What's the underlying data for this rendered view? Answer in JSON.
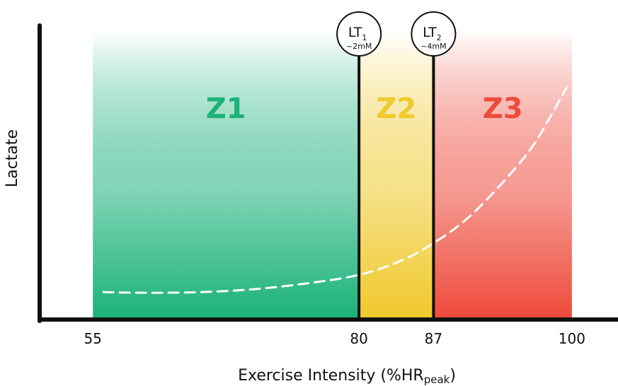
{
  "chart_data": {
    "type": "area",
    "xlabel_main": "Exercise Intensity (%HR",
    "xlabel_sub": "peak",
    "xlabel_close": ")",
    "ylabel": "Lactate",
    "x_ticks": [
      55,
      80,
      87,
      100
    ],
    "xlim": [
      50,
      103
    ],
    "grid": false,
    "zones": [
      {
        "name": "Z1",
        "x_start": 55,
        "x_end": 80,
        "color": "#1cb27a"
      },
      {
        "name": "Z2",
        "x_start": 80,
        "x_end": 87,
        "color": "#f0c92c"
      },
      {
        "name": "Z3",
        "x_start": 87,
        "x_end": 100,
        "color": "#ee4b3c"
      }
    ],
    "thresholds": [
      {
        "label": "LT",
        "subscript": "1",
        "note": "~2mM",
        "x": 80
      },
      {
        "label": "LT",
        "subscript": "2",
        "note": "~4mM",
        "x": 87
      }
    ],
    "series": [
      {
        "style": "dashed",
        "color": "#ffffff",
        "x": [
          56,
          60,
          65,
          70,
          75,
          80,
          84,
          87,
          90,
          93,
          96,
          98,
          99.5
        ],
        "y": [
          0.09,
          0.088,
          0.09,
          0.1,
          0.12,
          0.15,
          0.2,
          0.26,
          0.34,
          0.45,
          0.58,
          0.7,
          0.8
        ]
      }
    ]
  }
}
